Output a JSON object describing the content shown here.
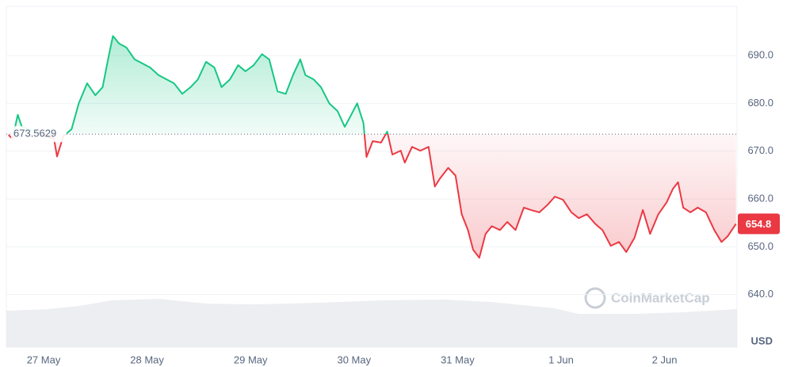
{
  "chart_data": {
    "type": "baseline-line",
    "currency": "USD",
    "watermark": "CoinMarketCap",
    "baseline": 673.5629,
    "up_color": "#16c784",
    "down_color": "#ea3943",
    "grid": true,
    "xlim": [
      -0.36,
      6.7
    ],
    "ylim": [
      629,
      700.3
    ],
    "xticks": [
      {
        "value": 0,
        "label": "27 May"
      },
      {
        "value": 1,
        "label": "28 May"
      },
      {
        "value": 2,
        "label": "29 May"
      },
      {
        "value": 3,
        "label": "30 May"
      },
      {
        "value": 4,
        "label": "31 May"
      },
      {
        "value": 5,
        "label": "1 Jun"
      },
      {
        "value": 6,
        "label": "2 Jun"
      }
    ],
    "yticks": [
      {
        "value": 640,
        "label": "640.0"
      },
      {
        "value": 650,
        "label": "650.0"
      },
      {
        "value": 660,
        "label": "660.0"
      },
      {
        "value": 670,
        "label": "670.0"
      },
      {
        "value": 680,
        "label": "680.0"
      },
      {
        "value": 690,
        "label": "690.0"
      }
    ],
    "x": [
      -0.34,
      -0.3,
      -0.25,
      -0.21,
      0.1,
      0.13,
      0.19,
      0.27,
      0.34,
      0.42,
      0.5,
      0.57,
      0.63,
      0.67,
      0.73,
      0.8,
      0.88,
      0.96,
      1.03,
      1.11,
      1.19,
      1.26,
      1.34,
      1.42,
      1.49,
      1.57,
      1.65,
      1.72,
      1.8,
      1.88,
      1.95,
      2.03,
      2.11,
      2.18,
      2.26,
      2.34,
      2.41,
      2.48,
      2.53,
      2.61,
      2.68,
      2.76,
      2.84,
      2.91,
      2.95,
      3.03,
      3.09,
      3.12,
      3.18,
      3.26,
      3.32,
      3.37,
      3.45,
      3.49,
      3.56,
      3.64,
      3.72,
      3.78,
      3.83,
      3.91,
      3.98,
      4.04,
      4.1,
      4.15,
      4.21,
      4.27,
      4.33,
      4.41,
      4.48,
      4.56,
      4.64,
      4.71,
      4.79,
      4.87,
      4.94,
      5.02,
      5.1,
      5.17,
      5.25,
      5.33,
      5.4,
      5.48,
      5.56,
      5.63,
      5.71,
      5.79,
      5.86,
      5.94,
      6.02,
      6.08,
      6.13,
      6.18,
      6.25,
      6.32,
      6.4,
      6.48,
      6.55,
      6.61,
      6.69
    ],
    "values": [
      673.4,
      672.6,
      677.6,
      675.1,
      672.6,
      668.9,
      673.1,
      674.6,
      680.0,
      684.2,
      681.7,
      683.4,
      690.0,
      694.1,
      692.5,
      691.7,
      689.2,
      688.3,
      687.5,
      685.9,
      685.0,
      684.2,
      682.0,
      683.4,
      685.0,
      688.7,
      687.5,
      683.4,
      685.0,
      688.0,
      686.7,
      688.0,
      690.3,
      689.2,
      682.5,
      682.0,
      685.9,
      689.2,
      685.9,
      685.0,
      683.4,
      680.0,
      678.4,
      675.1,
      676.7,
      680.0,
      675.9,
      668.8,
      672.1,
      671.8,
      674.1,
      669.3,
      670.1,
      667.6,
      670.9,
      670.1,
      670.9,
      662.6,
      664.3,
      666.5,
      664.9,
      656.8,
      653.5,
      649.4,
      647.7,
      652.7,
      654.3,
      653.5,
      655.2,
      653.5,
      658.2,
      657.7,
      657.2,
      658.8,
      660.5,
      659.8,
      657.2,
      656.0,
      656.8,
      654.8,
      653.5,
      650.2,
      651.0,
      648.9,
      651.9,
      657.7,
      652.7,
      656.8,
      659.3,
      662.1,
      663.5,
      658.2,
      657.2,
      658.2,
      657.2,
      653.5,
      651.0,
      652.2,
      654.8
    ]
  }
}
